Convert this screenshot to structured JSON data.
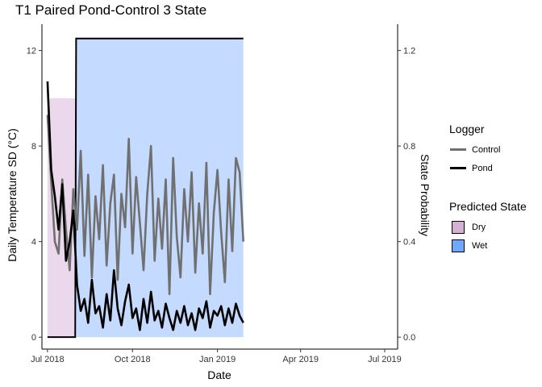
{
  "chart_data": {
    "type": "line",
    "title": "T1 Paired Pond-Control 3 State",
    "xlabel": "Date",
    "ylabel": "Daily Temperature SD (°C)",
    "ylabel_right": "State Probability",
    "x_ticks": [
      "Jul 2018",
      "Oct 2018",
      "Jan 2019",
      "Apr 2019",
      "Jul 2019"
    ],
    "xlim": [
      "2018-06-25",
      "2019-07-15"
    ],
    "y_ticks": [
      "0",
      "4",
      "8",
      "12"
    ],
    "ylim": [
      -0.5,
      13.1
    ],
    "y2_ticks": [
      "0.0",
      "0.4",
      "0.8",
      "1.2"
    ],
    "y2lim": [
      -0.05,
      1.31
    ],
    "grid": false,
    "legend_position": "right",
    "legends": {
      "logger": {
        "title": "Logger",
        "items": [
          {
            "label": "Control",
            "color": "#707070"
          },
          {
            "label": "Pond",
            "color": "#000000"
          }
        ]
      },
      "state": {
        "title": "Predicted State",
        "items": [
          {
            "label": "Dry",
            "color": "#ddbbdd"
          },
          {
            "label": "Wet",
            "color": "#6fa8ff"
          }
        ]
      }
    },
    "state_probability": {
      "dry": {
        "x": [
          "2018-07-01",
          "2018-07-31"
        ],
        "y": [
          1.0,
          1.0
        ]
      },
      "wet": {
        "x": [
          "2018-08-01",
          "2019-01-29"
        ],
        "y": [
          1.25,
          1.25
        ]
      }
    },
    "series": [
      {
        "name": "Control",
        "color": "#707070",
        "x": [
          "2018-07-01",
          "2018-07-05",
          "2018-07-09",
          "2018-07-13",
          "2018-07-17",
          "2018-07-21",
          "2018-07-25",
          "2018-07-29",
          "2018-08-02",
          "2018-08-06",
          "2018-08-10",
          "2018-08-14",
          "2018-08-18",
          "2018-08-22",
          "2018-08-26",
          "2018-08-30",
          "2018-09-03",
          "2018-09-07",
          "2018-09-11",
          "2018-09-15",
          "2018-09-19",
          "2018-09-23",
          "2018-09-27",
          "2018-10-01",
          "2018-10-05",
          "2018-10-09",
          "2018-10-13",
          "2018-10-17",
          "2018-10-21",
          "2018-10-25",
          "2018-10-29",
          "2018-11-02",
          "2018-11-06",
          "2018-11-10",
          "2018-11-14",
          "2018-11-18",
          "2018-11-22",
          "2018-11-26",
          "2018-11-30",
          "2018-12-04",
          "2018-12-08",
          "2018-12-12",
          "2018-12-16",
          "2018-12-20",
          "2018-12-24",
          "2018-12-28",
          "2019-01-01",
          "2019-01-05",
          "2019-01-09",
          "2019-01-13",
          "2019-01-17",
          "2019-01-21",
          "2019-01-25",
          "2019-01-29"
        ],
        "values": [
          9.3,
          6.5,
          4.0,
          3.5,
          6.6,
          4.5,
          2.8,
          6.2,
          4.5,
          7.8,
          3.4,
          6.8,
          2.5,
          5.9,
          4.1,
          7.2,
          3.0,
          5.6,
          6.8,
          2.4,
          6.0,
          4.6,
          8.3,
          3.5,
          6.7,
          4.8,
          2.8,
          6.0,
          8.0,
          3.2,
          5.8,
          3.7,
          6.6,
          1.8,
          7.5,
          4.2,
          2.5,
          6.2,
          4.0,
          6.9,
          2.7,
          5.6,
          3.5,
          7.3,
          1.8,
          5.2,
          7.0,
          4.4,
          2.3,
          6.6,
          3.6,
          7.5,
          6.9,
          4.0
        ]
      },
      {
        "name": "Pond",
        "color": "#000000",
        "x": [
          "2018-07-01",
          "2018-07-05",
          "2018-07-09",
          "2018-07-13",
          "2018-07-17",
          "2018-07-21",
          "2018-07-25",
          "2018-07-29",
          "2018-08-02",
          "2018-08-06",
          "2018-08-10",
          "2018-08-14",
          "2018-08-18",
          "2018-08-22",
          "2018-08-26",
          "2018-08-30",
          "2018-09-03",
          "2018-09-07",
          "2018-09-11",
          "2018-09-15",
          "2018-09-19",
          "2018-09-23",
          "2018-09-27",
          "2018-10-01",
          "2018-10-05",
          "2018-10-09",
          "2018-10-13",
          "2018-10-17",
          "2018-10-21",
          "2018-10-25",
          "2018-10-29",
          "2018-11-02",
          "2018-11-06",
          "2018-11-10",
          "2018-11-14",
          "2018-11-18",
          "2018-11-22",
          "2018-11-26",
          "2018-11-30",
          "2018-12-04",
          "2018-12-08",
          "2018-12-12",
          "2018-12-16",
          "2018-12-20",
          "2018-12-24",
          "2018-12-28",
          "2019-01-01",
          "2019-01-05",
          "2019-01-09",
          "2019-01-13",
          "2019-01-17",
          "2019-01-21",
          "2019-01-25",
          "2019-01-29"
        ],
        "values": [
          10.7,
          7.0,
          5.9,
          4.5,
          6.4,
          3.2,
          4.0,
          5.3,
          2.2,
          1.1,
          1.6,
          0.6,
          2.4,
          1.0,
          1.3,
          0.4,
          1.8,
          0.7,
          2.8,
          1.2,
          0.5,
          1.5,
          2.2,
          0.8,
          1.2,
          0.3,
          1.6,
          0.6,
          1.9,
          0.7,
          1.1,
          0.4,
          1.4,
          0.8,
          0.3,
          1.1,
          0.6,
          1.3,
          0.5,
          1.0,
          0.3,
          1.2,
          0.8,
          1.5,
          0.4,
          1.1,
          0.9,
          1.3,
          0.5,
          1.2,
          0.6,
          1.4,
          0.9,
          0.6
        ]
      }
    ]
  }
}
